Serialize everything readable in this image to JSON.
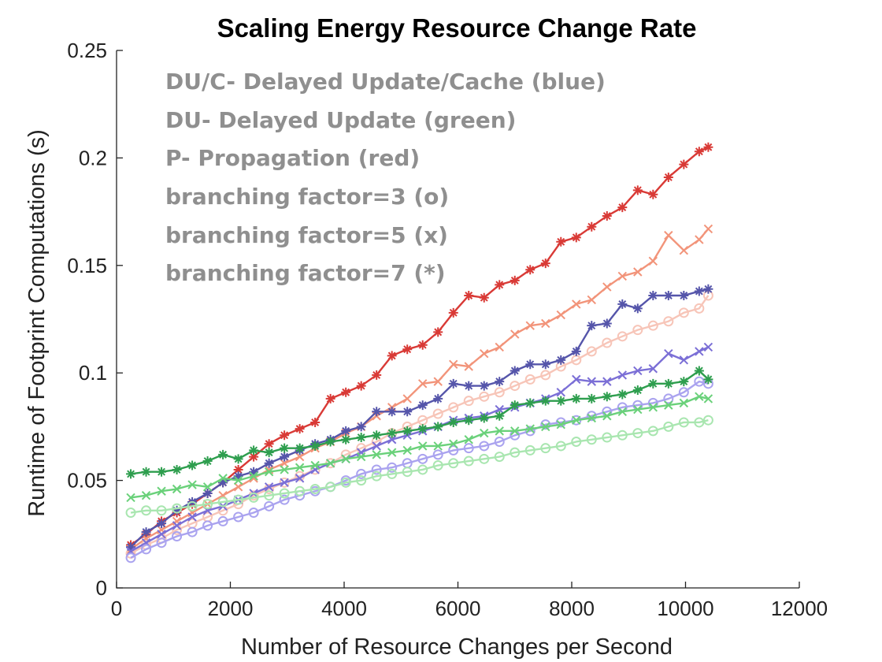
{
  "chart_data": {
    "type": "line",
    "title": "Scaling Energy Resource Change Rate",
    "xlabel": "Number of Resource Changes per Second",
    "ylabel": "Runtime of Footprint Computations (s)",
    "xlim": [
      0,
      12000
    ],
    "ylim": [
      0,
      0.25
    ],
    "xticks": [
      0,
      2000,
      4000,
      6000,
      8000,
      10000,
      12000
    ],
    "xtick_labels": [
      "0",
      "2000",
      "4000",
      "6000",
      "8000",
      "10000",
      "12000"
    ],
    "yticks": [
      0,
      0.05,
      0.1,
      0.15,
      0.2,
      0.25
    ],
    "ytick_labels": [
      "0",
      "0.05",
      "0.1",
      "0.15",
      "0.2",
      "0.25"
    ],
    "grid": false,
    "annotations": [
      "DU/C- Delayed Update/Cache (blue)",
      "DU- Delayed Update (green)",
      "P- Propagation (red)",
      "branching factor=3 (o)",
      "branching factor=5 (x)",
      "branching factor=7 (*)"
    ],
    "x": [
      250,
      520,
      790,
      1060,
      1330,
      1600,
      1870,
      2140,
      2410,
      2680,
      2950,
      3220,
      3490,
      3760,
      4030,
      4300,
      4570,
      4840,
      5110,
      5380,
      5650,
      5920,
      6190,
      6460,
      6730,
      7000,
      7270,
      7540,
      7810,
      8080,
      8350,
      8620,
      8890,
      9160,
      9430,
      9700,
      9970,
      10240,
      10400
    ],
    "series": [
      {
        "color": "#d93a36",
        "marker": "*",
        "values": [
          0.02,
          0.025,
          0.031,
          0.035,
          0.039,
          0.044,
          0.049,
          0.055,
          0.061,
          0.067,
          0.071,
          0.074,
          0.077,
          0.088,
          0.091,
          0.094,
          0.099,
          0.108,
          0.111,
          0.113,
          0.119,
          0.128,
          0.136,
          0.135,
          0.141,
          0.143,
          0.148,
          0.151,
          0.161,
          0.163,
          0.168,
          0.173,
          0.177,
          0.185,
          0.183,
          0.191,
          0.197,
          0.203,
          0.205
        ]
      },
      {
        "color": "#f2947a",
        "marker": "x",
        "values": [
          0.018,
          0.023,
          0.027,
          0.031,
          0.035,
          0.039,
          0.043,
          0.047,
          0.051,
          0.055,
          0.058,
          0.061,
          0.065,
          0.068,
          0.072,
          0.075,
          0.08,
          0.084,
          0.088,
          0.095,
          0.096,
          0.104,
          0.103,
          0.109,
          0.112,
          0.118,
          0.122,
          0.123,
          0.127,
          0.132,
          0.134,
          0.14,
          0.145,
          0.147,
          0.152,
          0.164,
          0.157,
          0.162,
          0.167
        ]
      },
      {
        "color": "#f7c5b8",
        "marker": "o",
        "values": [
          0.016,
          0.02,
          0.023,
          0.027,
          0.03,
          0.033,
          0.036,
          0.039,
          0.043,
          0.046,
          0.049,
          0.052,
          0.055,
          0.058,
          0.062,
          0.065,
          0.068,
          0.072,
          0.075,
          0.078,
          0.081,
          0.084,
          0.087,
          0.089,
          0.091,
          0.094,
          0.097,
          0.099,
          0.103,
          0.106,
          0.11,
          0.114,
          0.117,
          0.12,
          0.122,
          0.124,
          0.128,
          0.13,
          0.136
        ]
      },
      {
        "color": "#5555aa",
        "marker": "*",
        "values": [
          0.019,
          0.026,
          0.03,
          0.036,
          0.04,
          0.044,
          0.049,
          0.052,
          0.054,
          0.058,
          0.061,
          0.064,
          0.067,
          0.069,
          0.073,
          0.075,
          0.082,
          0.082,
          0.082,
          0.085,
          0.088,
          0.095,
          0.094,
          0.094,
          0.096,
          0.101,
          0.104,
          0.104,
          0.106,
          0.11,
          0.122,
          0.123,
          0.132,
          0.13,
          0.136,
          0.136,
          0.136,
          0.138,
          0.139
        ]
      },
      {
        "color": "#7b6fd6",
        "marker": "x",
        "values": [
          0.017,
          0.021,
          0.025,
          0.029,
          0.033,
          0.036,
          0.038,
          0.041,
          0.044,
          0.047,
          0.049,
          0.051,
          0.055,
          0.058,
          0.06,
          0.063,
          0.066,
          0.069,
          0.071,
          0.073,
          0.075,
          0.078,
          0.079,
          0.08,
          0.083,
          0.084,
          0.086,
          0.088,
          0.091,
          0.097,
          0.096,
          0.096,
          0.099,
          0.101,
          0.102,
          0.109,
          0.106,
          0.11,
          0.112
        ]
      },
      {
        "color": "#aaa3ef",
        "marker": "o",
        "values": [
          0.014,
          0.018,
          0.021,
          0.024,
          0.026,
          0.029,
          0.031,
          0.033,
          0.035,
          0.038,
          0.041,
          0.043,
          0.045,
          0.047,
          0.05,
          0.053,
          0.055,
          0.056,
          0.058,
          0.06,
          0.062,
          0.064,
          0.065,
          0.066,
          0.068,
          0.071,
          0.073,
          0.076,
          0.077,
          0.078,
          0.08,
          0.082,
          0.084,
          0.085,
          0.086,
          0.088,
          0.091,
          0.096,
          0.095
        ]
      },
      {
        "color": "#2e9e4e",
        "marker": "*",
        "values": [
          0.053,
          0.054,
          0.054,
          0.055,
          0.057,
          0.059,
          0.062,
          0.06,
          0.064,
          0.063,
          0.065,
          0.065,
          0.066,
          0.068,
          0.069,
          0.07,
          0.071,
          0.072,
          0.073,
          0.074,
          0.075,
          0.077,
          0.078,
          0.079,
          0.08,
          0.085,
          0.086,
          0.087,
          0.087,
          0.088,
          0.088,
          0.089,
          0.09,
          0.092,
          0.095,
          0.095,
          0.096,
          0.101,
          0.097
        ]
      },
      {
        "color": "#6ad17a",
        "marker": "x",
        "values": [
          0.042,
          0.043,
          0.045,
          0.046,
          0.048,
          0.047,
          0.051,
          0.05,
          0.052,
          0.054,
          0.055,
          0.056,
          0.057,
          0.058,
          0.06,
          0.061,
          0.062,
          0.063,
          0.064,
          0.066,
          0.066,
          0.067,
          0.069,
          0.072,
          0.073,
          0.073,
          0.074,
          0.075,
          0.076,
          0.078,
          0.079,
          0.08,
          0.082,
          0.083,
          0.084,
          0.085,
          0.086,
          0.089,
          0.088
        ]
      },
      {
        "color": "#a9e6b0",
        "marker": "o",
        "values": [
          0.035,
          0.036,
          0.036,
          0.037,
          0.038,
          0.039,
          0.04,
          0.041,
          0.042,
          0.043,
          0.044,
          0.045,
          0.046,
          0.047,
          0.049,
          0.05,
          0.052,
          0.053,
          0.054,
          0.055,
          0.057,
          0.058,
          0.059,
          0.06,
          0.061,
          0.063,
          0.064,
          0.065,
          0.066,
          0.068,
          0.069,
          0.07,
          0.071,
          0.072,
          0.073,
          0.075,
          0.077,
          0.077,
          0.078
        ]
      }
    ]
  }
}
